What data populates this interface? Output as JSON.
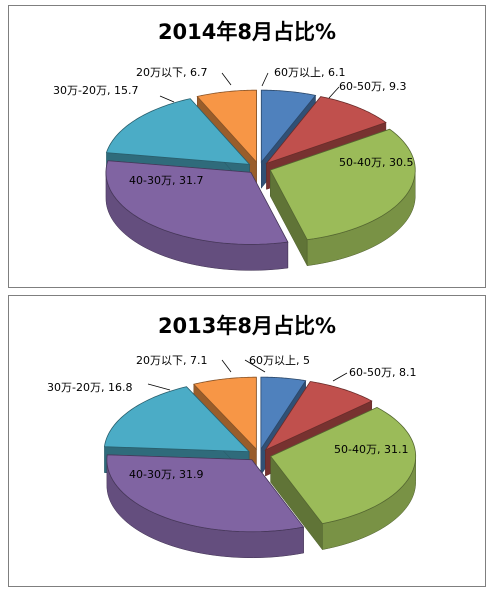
{
  "chart_data": [
    {
      "type": "pie",
      "title": "2014年8月占比%",
      "categories": [
        "60万以上",
        "60-50万",
        "50-40万",
        "40-30万",
        "30万-20万",
        "20万以下"
      ],
      "values": [
        6.1,
        9.3,
        30.5,
        31.7,
        15.7,
        6.7
      ],
      "labels": [
        "60万以上, 6.1",
        "60-50万, 9.3",
        "50-40万, 30.5",
        "40-30万, 31.7",
        "30万-20万, 15.7",
        "20万以下, 6.7"
      ],
      "colors": [
        "#4f81bd",
        "#c0504d",
        "#9bbb59",
        "#8064a2",
        "#4bacc6",
        "#f79646"
      ],
      "style": "3d-exploded",
      "legend": "none"
    },
    {
      "type": "pie",
      "title": "2013年8月占比%",
      "categories": [
        "60万以上",
        "60-50万",
        "50-40万",
        "40-30万",
        "30万-20万",
        "20万以下"
      ],
      "values": [
        5,
        8.1,
        31.1,
        31.9,
        16.8,
        7.1
      ],
      "labels": [
        "60万以上, 5",
        "60-50万, 8.1",
        "50-40万, 31.1",
        "40-30万, 31.9",
        "30万-20万, 16.8",
        "20万以下, 7.1"
      ],
      "colors": [
        "#4f81bd",
        "#c0504d",
        "#9bbb59",
        "#8064a2",
        "#4bacc6",
        "#f79646"
      ],
      "style": "3d-exploded",
      "legend": "none"
    }
  ]
}
